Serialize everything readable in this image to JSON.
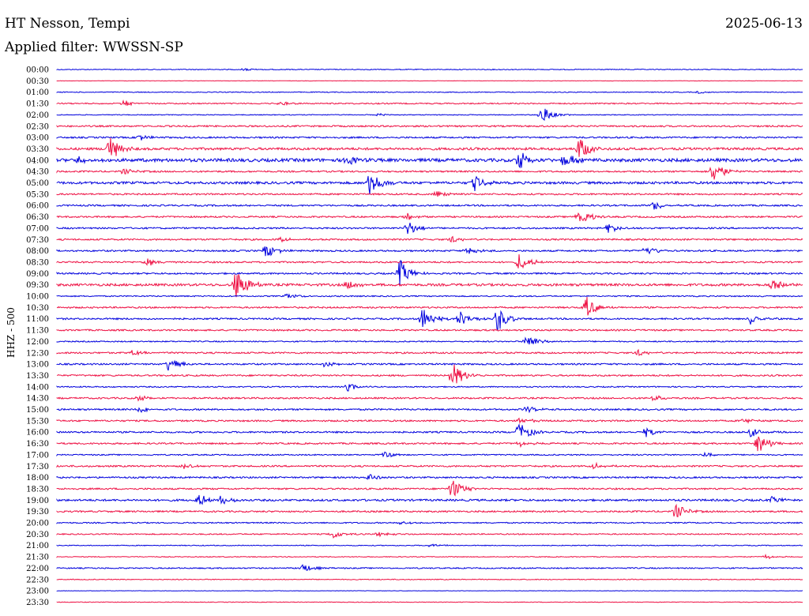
{
  "header": {
    "station": "HT Nesson, Tempi",
    "filter": "Applied filter: WWSSN-SP",
    "date": "2025-06-13"
  },
  "colors": {
    "blue": "#0000dd",
    "red": "#ee1144",
    "text": "#000000"
  },
  "chart_data": {
    "type": "line",
    "title": "HT Nesson, Tempi",
    "subtitle": "Applied filter: WWSSN-SP",
    "ylabel": "HHZ - 500",
    "xlabel": "",
    "grid": false,
    "traces": [
      {
        "label": "00:00",
        "color": "blue",
        "amp": 1,
        "events": [
          [
            25,
            2
          ]
        ]
      },
      {
        "label": "00:30",
        "color": "red",
        "amp": 0.5,
        "events": []
      },
      {
        "label": "01:00",
        "color": "blue",
        "amp": 1,
        "events": [
          [
            86,
            2
          ]
        ]
      },
      {
        "label": "01:30",
        "color": "red",
        "amp": 1.5,
        "events": [
          [
            9,
            4
          ],
          [
            30,
            3
          ]
        ]
      },
      {
        "label": "02:00",
        "color": "blue",
        "amp": 1,
        "events": [
          [
            65,
            12
          ],
          [
            43,
            2
          ]
        ]
      },
      {
        "label": "02:30",
        "color": "red",
        "amp": 2,
        "events": []
      },
      {
        "label": "03:00",
        "color": "blue",
        "amp": 2,
        "events": [
          [
            11,
            4
          ]
        ]
      },
      {
        "label": "03:30",
        "color": "red",
        "amp": 3,
        "events": [
          [
            7,
            18
          ],
          [
            70,
            15
          ]
        ]
      },
      {
        "label": "04:00",
        "color": "blue",
        "amp": 4,
        "events": [
          [
            3,
            6
          ],
          [
            62,
            14
          ],
          [
            68,
            10
          ],
          [
            39,
            6
          ]
        ]
      },
      {
        "label": "04:30",
        "color": "red",
        "amp": 2,
        "events": [
          [
            88,
            16
          ],
          [
            9,
            4
          ]
        ]
      },
      {
        "label": "05:00",
        "color": "blue",
        "amp": 3,
        "events": [
          [
            42,
            18
          ],
          [
            56,
            10
          ]
        ]
      },
      {
        "label": "05:30",
        "color": "red",
        "amp": 2,
        "events": [
          [
            51,
            5
          ]
        ]
      },
      {
        "label": "06:00",
        "color": "blue",
        "amp": 2,
        "events": [
          [
            80,
            7
          ]
        ]
      },
      {
        "label": "06:30",
        "color": "red",
        "amp": 2,
        "events": [
          [
            70,
            12
          ],
          [
            47,
            4
          ]
        ]
      },
      {
        "label": "07:00",
        "color": "blue",
        "amp": 2,
        "events": [
          [
            47,
            10
          ],
          [
            74,
            6
          ]
        ]
      },
      {
        "label": "07:30",
        "color": "red",
        "amp": 2,
        "events": [
          [
            30,
            3
          ],
          [
            53,
            4
          ]
        ]
      },
      {
        "label": "08:00",
        "color": "blue",
        "amp": 2,
        "events": [
          [
            28,
            10
          ],
          [
            55,
            6
          ],
          [
            79,
            7
          ]
        ]
      },
      {
        "label": "08:30",
        "color": "red",
        "amp": 2,
        "events": [
          [
            12,
            6
          ],
          [
            62,
            12
          ]
        ]
      },
      {
        "label": "09:00",
        "color": "blue",
        "amp": 2,
        "events": [
          [
            46,
            18
          ]
        ]
      },
      {
        "label": "09:30",
        "color": "red",
        "amp": 3,
        "events": [
          [
            24,
            22
          ],
          [
            39,
            6
          ],
          [
            96,
            8
          ]
        ]
      },
      {
        "label": "10:00",
        "color": "blue",
        "amp": 1.5,
        "events": [
          [
            31,
            4
          ]
        ]
      },
      {
        "label": "10:30",
        "color": "red",
        "amp": 2,
        "events": [
          [
            71,
            14
          ]
        ]
      },
      {
        "label": "11:00",
        "color": "blue",
        "amp": 2,
        "events": [
          [
            49,
            16
          ],
          [
            54,
            10
          ],
          [
            59,
            18
          ],
          [
            93,
            8
          ]
        ]
      },
      {
        "label": "11:30",
        "color": "red",
        "amp": 2,
        "events": []
      },
      {
        "label": "12:00",
        "color": "blue",
        "amp": 1.5,
        "events": [
          [
            63,
            12
          ]
        ]
      },
      {
        "label": "12:30",
        "color": "red",
        "amp": 2,
        "events": [
          [
            10,
            4
          ],
          [
            78,
            4
          ]
        ]
      },
      {
        "label": "13:00",
        "color": "blue",
        "amp": 2,
        "events": [
          [
            15,
            10
          ],
          [
            36,
            4
          ]
        ]
      },
      {
        "label": "13:30",
        "color": "red",
        "amp": 2,
        "events": [
          [
            53,
            18
          ]
        ]
      },
      {
        "label": "14:00",
        "color": "blue",
        "amp": 1.5,
        "events": [
          [
            39,
            5
          ]
        ]
      },
      {
        "label": "14:30",
        "color": "red",
        "amp": 2,
        "events": [
          [
            11,
            4
          ],
          [
            80,
            4
          ]
        ]
      },
      {
        "label": "15:00",
        "color": "blue",
        "amp": 2,
        "events": [
          [
            11,
            5
          ],
          [
            63,
            4
          ]
        ]
      },
      {
        "label": "15:30",
        "color": "red",
        "amp": 2,
        "events": [
          [
            62,
            5
          ],
          [
            92,
            4
          ]
        ]
      },
      {
        "label": "16:00",
        "color": "blue",
        "amp": 2,
        "events": [
          [
            62,
            14
          ],
          [
            79,
            6
          ],
          [
            93,
            6
          ]
        ]
      },
      {
        "label": "16:30",
        "color": "red",
        "amp": 2,
        "events": [
          [
            94,
            14
          ],
          [
            62,
            4
          ]
        ]
      },
      {
        "label": "17:00",
        "color": "blue",
        "amp": 1.5,
        "events": [
          [
            44,
            4
          ],
          [
            87,
            4
          ]
        ]
      },
      {
        "label": "17:30",
        "color": "red",
        "amp": 2,
        "events": [
          [
            17,
            4
          ],
          [
            72,
            4
          ]
        ]
      },
      {
        "label": "18:00",
        "color": "blue",
        "amp": 2,
        "events": [
          [
            42,
            5
          ]
        ]
      },
      {
        "label": "18:30",
        "color": "red",
        "amp": 2,
        "events": [
          [
            53,
            14
          ]
        ]
      },
      {
        "label": "19:00",
        "color": "blue",
        "amp": 2.5,
        "events": [
          [
            19,
            8
          ],
          [
            22,
            6
          ],
          [
            96,
            5
          ]
        ]
      },
      {
        "label": "19:30",
        "color": "red",
        "amp": 2,
        "events": [
          [
            83,
            10
          ]
        ]
      },
      {
        "label": "20:00",
        "color": "blue",
        "amp": 1.5,
        "events": [
          [
            46,
            3
          ]
        ]
      },
      {
        "label": "20:30",
        "color": "red",
        "amp": 1.5,
        "events": [
          [
            37,
            6
          ],
          [
            43,
            4
          ]
        ]
      },
      {
        "label": "21:00",
        "color": "blue",
        "amp": 1,
        "events": [
          [
            50,
            3
          ]
        ]
      },
      {
        "label": "21:30",
        "color": "red",
        "amp": 1,
        "events": [
          [
            95,
            3
          ]
        ]
      },
      {
        "label": "22:00",
        "color": "blue",
        "amp": 1.5,
        "events": [
          [
            33,
            6
          ]
        ]
      },
      {
        "label": "22:30",
        "color": "red",
        "amp": 1,
        "events": []
      },
      {
        "label": "23:00",
        "color": "blue",
        "amp": 0.5,
        "events": []
      },
      {
        "label": "23:30",
        "color": "red",
        "amp": 0.8,
        "events": []
      }
    ]
  }
}
